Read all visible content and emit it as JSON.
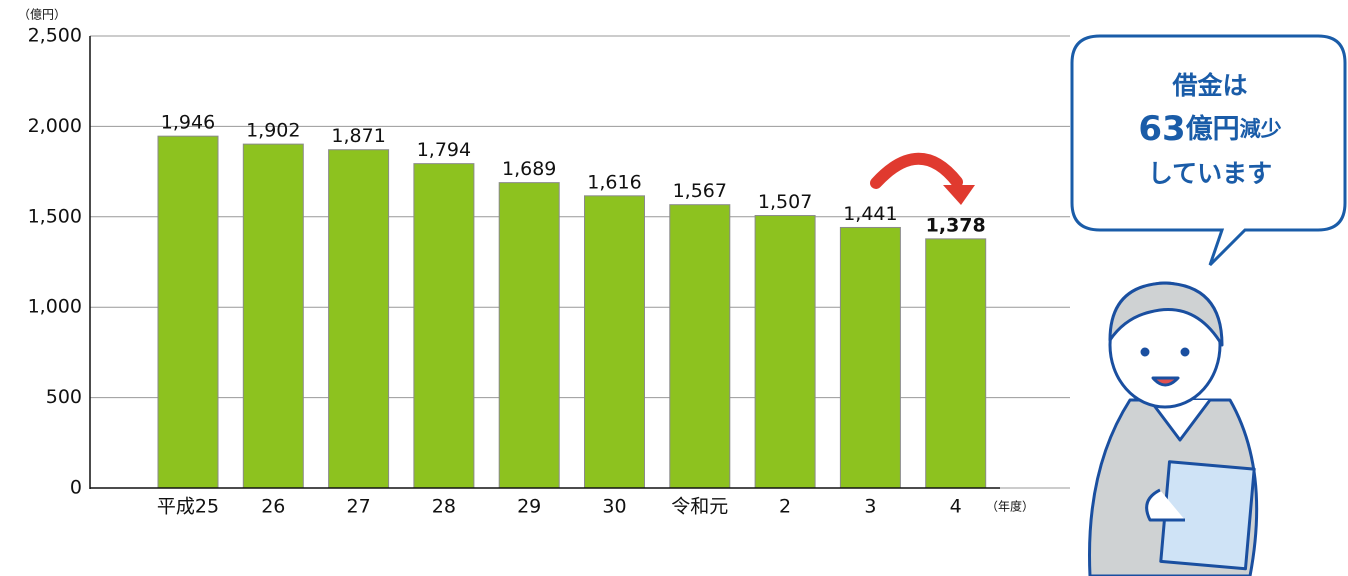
{
  "chart_data": {
    "type": "bar",
    "y_unit": "（億円）",
    "x_unit": "（年度）",
    "categories": [
      "平成25",
      "26",
      "27",
      "28",
      "29",
      "30",
      "令和元",
      "2",
      "3",
      "4"
    ],
    "values": [
      1946,
      1902,
      1871,
      1794,
      1689,
      1616,
      1567,
      1507,
      1441,
      1378
    ],
    "value_labels": [
      "1,946",
      "1,902",
      "1,871",
      "1,794",
      "1,689",
      "1,616",
      "1,567",
      "1,507",
      "1,441",
      "1,378"
    ],
    "color": "#8dc21f",
    "ylim": [
      0,
      2500
    ],
    "yticks": [
      0,
      500,
      {
        "value": 1000,
        "label": "1,000"
      },
      {
        "value": 1500,
        "label": "1,500"
      },
      {
        "value": 2000,
        "label": "2,000"
      },
      {
        "value": 2500,
        "label": "2,500"
      }
    ],
    "grid": true,
    "annotation": {
      "line1": "借金は",
      "line2": [
        "63",
        "億円",
        "減少"
      ],
      "line3": "しています"
    }
  }
}
